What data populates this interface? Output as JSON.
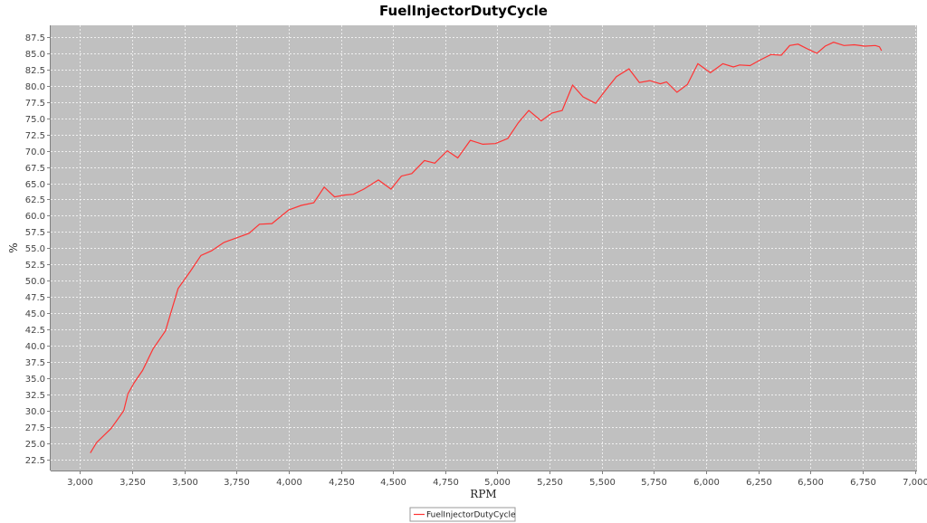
{
  "chart_data": {
    "type": "line",
    "title": "FuelInjectorDutyCycle",
    "xlabel": "RPM",
    "ylabel": "%",
    "xlim": [
      2860,
      7010
    ],
    "ylim": [
      20.8,
      89.3
    ],
    "x_ticks": [
      3000,
      3250,
      3500,
      3750,
      4000,
      4250,
      4500,
      4750,
      5000,
      5250,
      5500,
      5750,
      6000,
      6250,
      6500,
      6750,
      7000
    ],
    "x_tick_labels": [
      "3,000",
      "3,250",
      "3,500",
      "3,750",
      "4,000",
      "4,250",
      "4,500",
      "4,750",
      "5,000",
      "5,250",
      "5,500",
      "5,750",
      "6,000",
      "6,250",
      "6,500",
      "6,750",
      "7,000"
    ],
    "y_ticks": [
      22.5,
      25.0,
      27.5,
      30.0,
      32.5,
      35.0,
      37.5,
      40.0,
      42.5,
      45.0,
      47.5,
      50.0,
      52.5,
      55.0,
      57.5,
      60.0,
      62.5,
      65.0,
      67.5,
      70.0,
      72.5,
      75.0,
      77.5,
      80.0,
      82.5,
      85.0,
      87.5
    ],
    "y_tick_labels": [
      "22.5",
      "25.0",
      "27.5",
      "30.0",
      "32.5",
      "35.0",
      "37.5",
      "40.0",
      "42.5",
      "45.0",
      "47.5",
      "50.0",
      "52.5",
      "55.0",
      "57.5",
      "60.0",
      "62.5",
      "65.0",
      "67.5",
      "70.0",
      "72.5",
      "75.0",
      "77.5",
      "80.0",
      "82.5",
      "85.0",
      "87.5"
    ],
    "grid": true,
    "legend_position": "bottom-center",
    "colors": {
      "plot_background": "#c0c0c0",
      "gridline": "#ffffff",
      "series": "#ff3333"
    },
    "series": [
      {
        "name": "FuelInjectorDutyCycle",
        "x": [
          3050,
          3080,
          3150,
          3210,
          3230,
          3260,
          3300,
          3350,
          3410,
          3470,
          3530,
          3580,
          3630,
          3690,
          3750,
          3810,
          3860,
          3920,
          4000,
          4060,
          4120,
          4170,
          4220,
          4270,
          4310,
          4360,
          4430,
          4490,
          4540,
          4590,
          4650,
          4700,
          4760,
          4810,
          4870,
          4930,
          4990,
          5050,
          5100,
          5150,
          5210,
          5260,
          5310,
          5360,
          5410,
          5470,
          5520,
          5570,
          5630,
          5680,
          5730,
          5780,
          5810,
          5860,
          5910,
          5960,
          6020,
          6080,
          6130,
          6160,
          6210,
          6260,
          6310,
          6360,
          6400,
          6440,
          6490,
          6530,
          6570,
          6610,
          6660,
          6710,
          6760,
          6810,
          6830,
          6840
        ],
        "y": [
          23.5,
          25.1,
          27.3,
          30.0,
          32.6,
          34.3,
          36.2,
          39.5,
          42.3,
          48.8,
          51.5,
          53.9,
          54.6,
          55.9,
          56.6,
          57.3,
          58.7,
          58.8,
          60.9,
          61.6,
          62.0,
          64.4,
          62.9,
          63.2,
          63.3,
          64.1,
          65.5,
          64.1,
          66.1,
          66.5,
          68.5,
          68.1,
          70.0,
          68.9,
          71.6,
          71.0,
          71.1,
          71.9,
          74.3,
          76.2,
          74.6,
          75.8,
          76.2,
          80.1,
          78.3,
          77.3,
          79.4,
          81.4,
          82.6,
          80.5,
          80.8,
          80.3,
          80.6,
          79.0,
          80.2,
          83.4,
          82.0,
          83.4,
          82.9,
          83.2,
          83.1,
          84.0,
          84.8,
          84.7,
          86.2,
          86.4,
          85.6,
          85.0,
          86.1,
          86.7,
          86.2,
          86.3,
          86.1,
          86.2,
          86.0,
          85.4
        ]
      }
    ]
  }
}
